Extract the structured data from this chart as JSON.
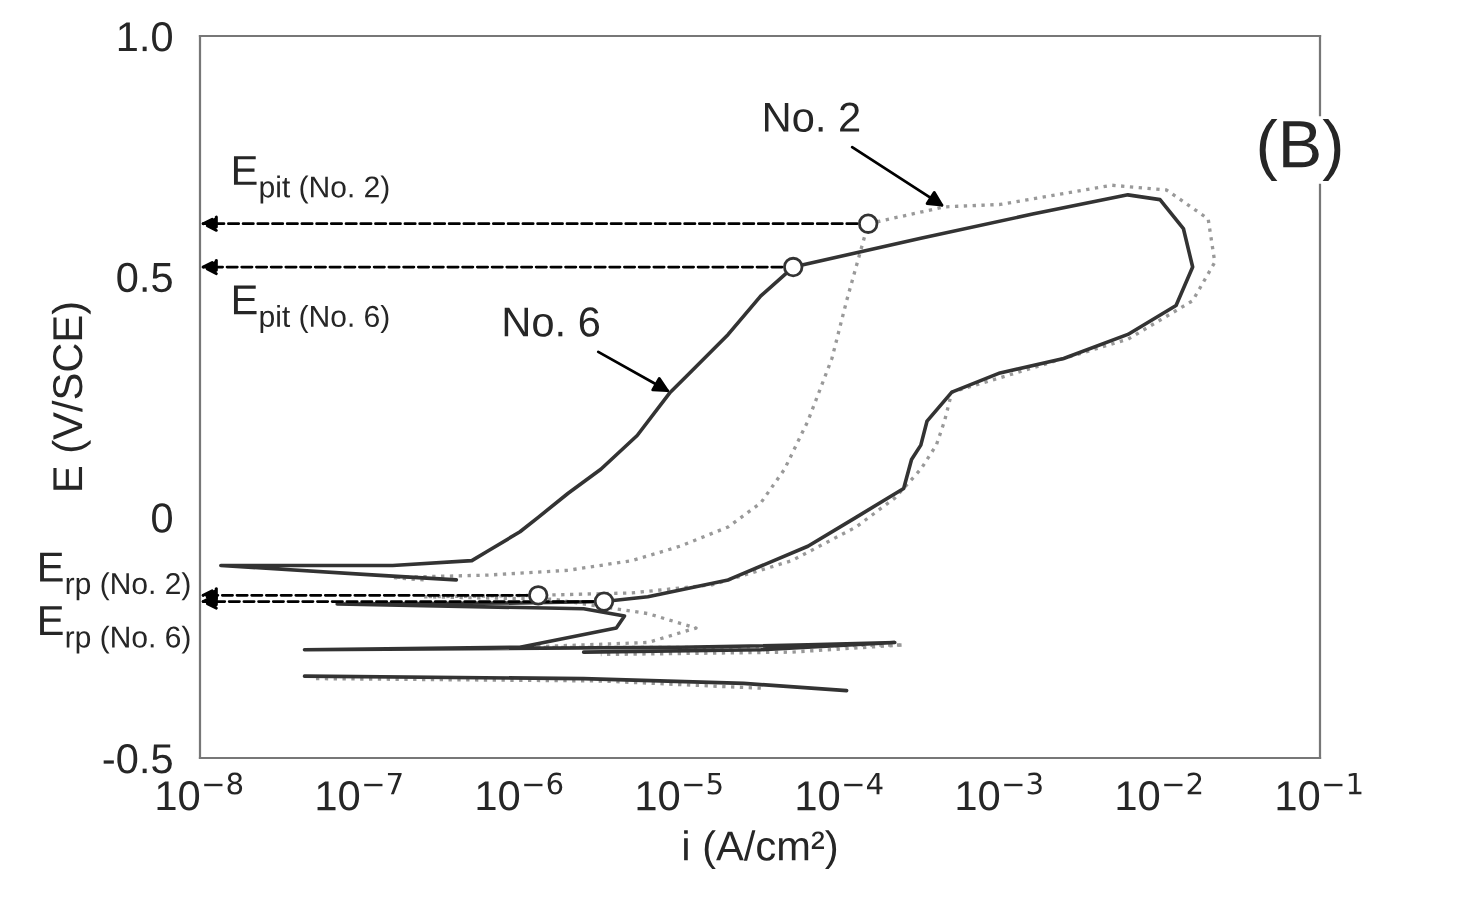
{
  "chart_data": {
    "type": "line",
    "xlabel": "i (A/cm²)",
    "ylabel": "E (V/SCE)",
    "log": "x",
    "grid": false,
    "xlim": [
      1e-08,
      0.1
    ],
    "xticks": [
      {
        "value": 1e-08,
        "label": "10$^{−8}$"
      },
      {
        "value": 1e-07,
        "label": "10$^{−7}$"
      },
      {
        "value": 1e-06,
        "label": "10$^{−6}$"
      },
      {
        "value": 1e-05,
        "label": "10$^{−5}$"
      },
      {
        "value": 0.0001,
        "label": "10$^{−4}$"
      },
      {
        "value": 0.001,
        "label": "10$^{−3}$"
      },
      {
        "value": 0.01,
        "label": "10$^{−2}$"
      },
      {
        "value": 0.1,
        "label": "10$^{−1}$"
      }
    ],
    "ylim": [
      -0.5,
      1.0
    ],
    "yticks": [
      {
        "value": -0.5,
        "label": "-0.5"
      },
      0,
      {
        "value": 0.5,
        "label": "0.5"
      },
      {
        "value": 1.0,
        "label": "1.0"
      }
    ],
    "series": [
      {
        "color": "#999999",
        "line_style": "dotted",
        "marker": "none",
        "x": [
          3.2e-05,
          3.2e-06,
          5e-08,
          null,
          2.5e-07,
          1.6e-07,
          6.3e-07,
          2e-06,
          5e-06,
          1e-05,
          2e-05,
          3.2e-05,
          4.5e-05,
          6.3e-05,
          8.9e-05,
          0.00011,
          0.00015,
          0.00045,
          0.001,
          0.005,
          0.011,
          0.02,
          0.022,
          0.016,
          0.0063,
          0.0025,
          0.001,
          0.0005,
          0.00045,
          0.0004,
          0.00032,
          0.00022,
          0.000126,
          5e-05,
          1.6e-05,
          5e-06,
          1.3e-06,
          2.5e-07,
          1.6e-06,
          6.3e-06,
          1.26e-05,
          6.3e-06,
          1e-06,
          1.6e-05,
          0.00025,
          5e-05,
          3.2e-06
        ],
        "values": [
          -0.355,
          -0.34,
          -0.335,
          null,
          -0.13,
          -0.125,
          -0.12,
          -0.11,
          -0.09,
          -0.06,
          -0.02,
          0.03,
          0.1,
          0.2,
          0.33,
          0.45,
          0.61,
          0.645,
          0.65,
          0.69,
          0.68,
          0.62,
          0.53,
          0.45,
          0.37,
          0.33,
          0.29,
          0.26,
          0.2,
          0.15,
          0.1,
          0.04,
          -0.02,
          -0.09,
          -0.14,
          -0.157,
          -0.162,
          -0.165,
          -0.17,
          -0.2,
          -0.23,
          -0.26,
          -0.27,
          -0.27,
          -0.265,
          -0.28,
          -0.285
        ]
      },
      {
        "color": "#333333",
        "line_style": "solid",
        "marker": "none",
        "x": [
          0.00011,
          2.5e-05,
          2.5e-06,
          4.5e-08,
          null,
          4e-07,
          1.26e-07,
          1.35e-08,
          1.6e-07,
          5e-07,
          6.3e-07,
          1e-06,
          1.3e-06,
          2e-06,
          3.2e-06,
          5.4e-06,
          8.7e-06,
          1.15e-05,
          2e-05,
          3.2e-05,
          5.1e-05,
          0.00032,
          0.0016,
          0.0063,
          0.01,
          0.014,
          0.016,
          0.0126,
          0.0063,
          0.0025,
          0.001,
          0.0005,
          0.00035,
          0.00032,
          0.00028,
          0.00025,
          0.000126,
          6.3e-05,
          2e-05,
          6.3e-06,
          3.35e-06,
          1e-06,
          7.2e-08,
          2.5e-06,
          4.5e-06,
          4e-06,
          1e-06,
          4.5e-08,
          1e-05,
          6.3e-05,
          0.00022,
          3.2e-05,
          2.5e-06
        ],
        "values": [
          -0.36,
          -0.345,
          -0.335,
          -0.33,
          null,
          -0.13,
          -0.12,
          -0.1,
          -0.1,
          -0.09,
          -0.07,
          -0.03,
          0.0,
          0.05,
          0.1,
          0.17,
          0.26,
          0.3,
          0.38,
          0.46,
          0.52,
          0.58,
          0.63,
          0.67,
          0.66,
          0.6,
          0.52,
          0.44,
          0.38,
          0.33,
          0.3,
          0.26,
          0.2,
          0.15,
          0.12,
          0.06,
          0.0,
          -0.06,
          -0.13,
          -0.165,
          -0.175,
          -0.178,
          -0.18,
          -0.19,
          -0.205,
          -0.23,
          -0.27,
          -0.275,
          -0.27,
          -0.265,
          -0.26,
          -0.275,
          -0.28
        ]
      },
      {
        "type": "scatter",
        "color": "#333333",
        "marker": "circle",
        "x": [
          5.1e-05,
          0.00015,
          1.3e-06,
          3.35e-06
        ],
        "values": [
          0.52,
          0.61,
          -0.162,
          -0.175
        ]
      }
    ],
    "annotations": [
      "(B)",
      {
        "text": "No. 2",
        "x": 0.00045,
        "y": 0.645
      },
      {
        "text": "No. 6",
        "x": 8.7e-06,
        "y": 0.26
      },
      {
        "text": "E$_{pit (No. 2)}$",
        "x": 0.00015,
        "y": 0.61
      },
      {
        "text": "E$_{pit (No. 6)}$",
        "x": 5.1e-05,
        "y": 0.52
      },
      {
        "text": "E$_{rp (No. 2)}$",
        "x": 1.3e-06,
        "y": -0.162
      },
      {
        "text": "E$_{rp (No. 6)}$",
        "x": 3.35e-06,
        "y": -0.175
      }
    ]
  }
}
